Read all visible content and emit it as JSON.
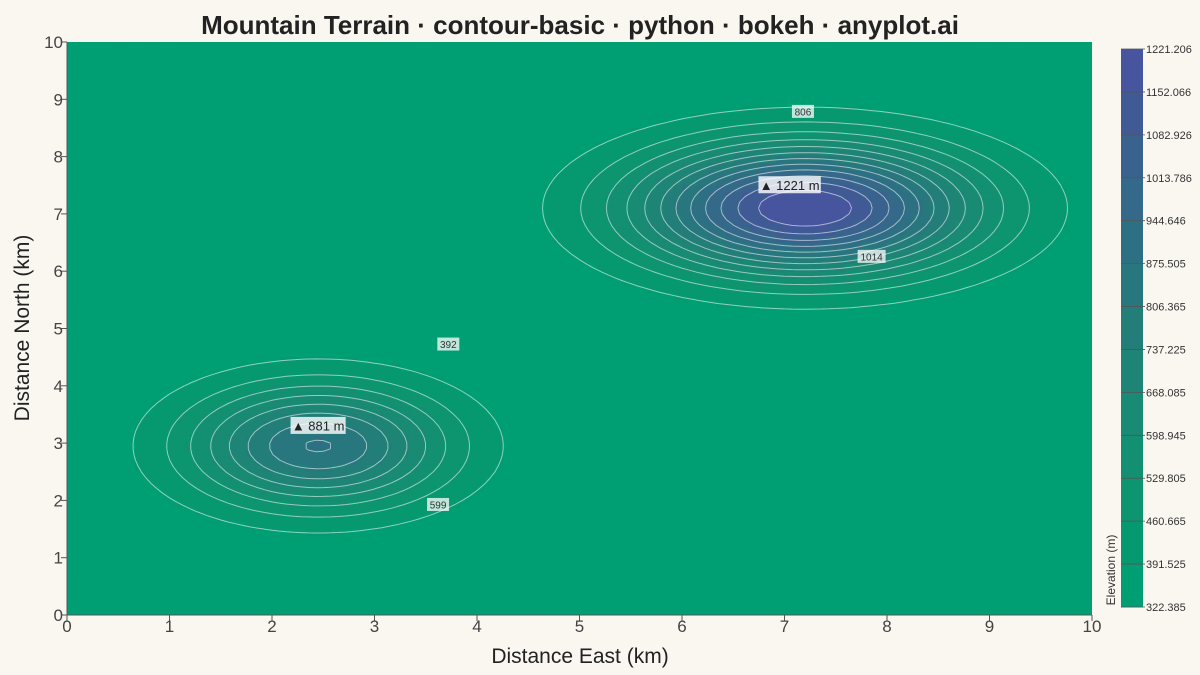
{
  "chart_data": {
    "type": "contour",
    "title": "Mountain Terrain · contour-basic · python · bokeh · anyplot.ai",
    "xlabel": "Distance East (km)",
    "ylabel": "Distance North (km)",
    "xlim": [
      0,
      10
    ],
    "ylim": [
      0,
      10
    ],
    "x_ticks": [
      "0",
      "1",
      "2",
      "3",
      "4",
      "5",
      "6",
      "7",
      "8",
      "9",
      "10"
    ],
    "y_ticks": [
      "0",
      "1",
      "2",
      "3",
      "4",
      "5",
      "6",
      "7",
      "8",
      "9",
      "10"
    ],
    "grid": false,
    "terrain": {
      "base_elevation": 322,
      "peaks": [
        {
          "x": 7.2,
          "y": 7.1,
          "height": 900,
          "sx": 1.6,
          "sy": 1.1
        },
        {
          "x": 2.45,
          "y": 2.95,
          "height": 560,
          "sx": 1.25,
          "sy": 1.05
        }
      ]
    },
    "contour_levels": [
      322.385,
      391.525,
      460.665,
      529.805,
      598.945,
      668.085,
      737.225,
      806.365,
      875.505,
      944.646,
      1013.786,
      1082.926,
      1152.066,
      1221.206
    ],
    "contour_labels": [
      {
        "text": "806",
        "x": 7.18,
        "y": 8.78
      },
      {
        "text": "1014",
        "x": 7.85,
        "y": 6.25
      },
      {
        "text": "392",
        "x": 3.72,
        "y": 4.72
      },
      {
        "text": "599",
        "x": 3.62,
        "y": 1.92
      }
    ],
    "peak_annotations": [
      {
        "text": "▲ 1221 m",
        "x": 7.05,
        "y": 7.5
      },
      {
        "text": "▲ 881 m",
        "x": 2.45,
        "y": 3.3
      }
    ],
    "colorbar": {
      "title": "Elevation (m)",
      "placement": "right",
      "tick_labels": [
        "1221.206",
        "1152.066",
        "1082.926",
        "1013.786",
        "944.646",
        "875.505",
        "806.365",
        "737.225",
        "668.085",
        "598.945",
        "529.805",
        "460.665",
        "391.525",
        "322.385"
      ],
      "colors": [
        "#009e73",
        "#06996f",
        "#0c956f",
        "#138f71",
        "#198a73",
        "#1e8476",
        "#237e79",
        "#29777e",
        "#2e7083",
        "#346989",
        "#3a628f",
        "#405a96",
        "#47559f"
      ]
    }
  }
}
